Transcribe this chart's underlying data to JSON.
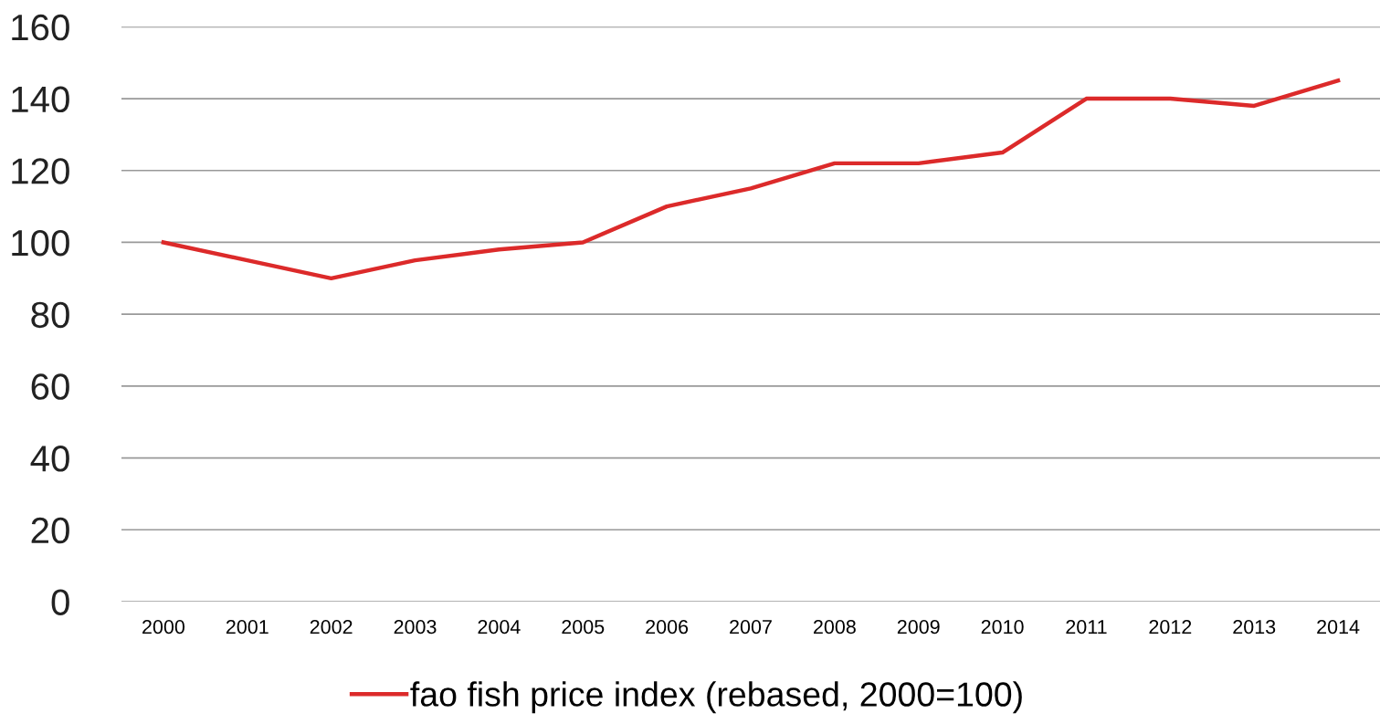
{
  "chart_data": {
    "type": "line",
    "categories": [
      "2000",
      "2001",
      "2002",
      "2003",
      "2004",
      "2005",
      "2006",
      "2007",
      "2008",
      "2009",
      "2010",
      "2011",
      "2012",
      "2013",
      "2014"
    ],
    "series": [
      {
        "name": "fao fish price index (rebased, 2000=100)",
        "color": "#dc2a2a",
        "values": [
          100,
          95,
          90,
          95,
          98,
          100,
          110,
          115,
          122,
          122,
          125,
          140,
          140,
          138,
          145
        ]
      }
    ],
    "ylim": [
      0,
      160
    ],
    "yticks": [
      0,
      20,
      40,
      60,
      80,
      100,
      120,
      140,
      160
    ],
    "grid": "y",
    "legend": "bottom",
    "marker": "none",
    "line_style": "solid"
  }
}
